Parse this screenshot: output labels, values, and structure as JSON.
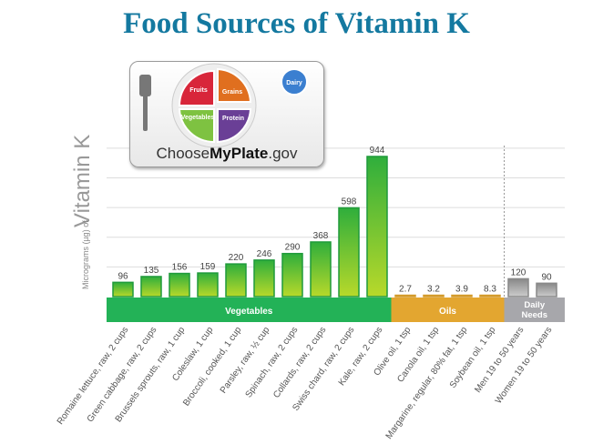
{
  "title": "Food Sources of Vitamin K",
  "logo": {
    "text_prefix": "Choose",
    "text_bold": "MyPlate",
    "text_suffix": ".gov",
    "sections": [
      "Fruits",
      "Grains",
      "Vegetables",
      "Protein",
      "Dairy"
    ]
  },
  "chart_data": {
    "type": "bar",
    "ylabel_small": "Micrograms (µg) of",
    "ylabel_large": "Vitamin K",
    "ylim": [
      0,
      1000
    ],
    "grid": true,
    "categories": [
      "Romaine lettuce, raw, 2 cups",
      "Green cabbage, raw, 2 cups",
      "Brussels sprouts, raw, 1 cup",
      "Coleslaw, 1 cup",
      "Broccoli, cooked, 1 cup",
      "Parsley, raw, ½ cup",
      "Spinach, raw, 2 cups",
      "Collards, raw, 2 cups",
      "Swiss chard, raw, 2 cups",
      "Kale, raw, 2 cups",
      "Olive oil, 1 tsp",
      "Canola oil, 1 tsp",
      "Margarine, regular, 80% fat, 1 tsp",
      "Soybean oil, 1 tsp",
      "Men 19 to 50 years",
      "Women 19 to 50 years"
    ],
    "values": [
      96,
      135,
      156,
      159,
      220,
      246,
      290,
      368,
      598,
      944,
      2.7,
      3.2,
      3.9,
      8.3,
      120,
      90
    ],
    "value_labels": [
      "96",
      "135",
      "156",
      "159",
      "220",
      "246",
      "290",
      "368",
      "598",
      "944",
      "2.7",
      "3.2",
      "3.9",
      "8.3",
      "120",
      "90"
    ],
    "groups": [
      {
        "name": "Vegetables",
        "count": 10,
        "color": "#23b257"
      },
      {
        "name": "Oils",
        "count": 4,
        "color": "#e3a630"
      },
      {
        "name": "Daily Needs",
        "count": 2,
        "color": "#a7a7ab"
      }
    ]
  }
}
